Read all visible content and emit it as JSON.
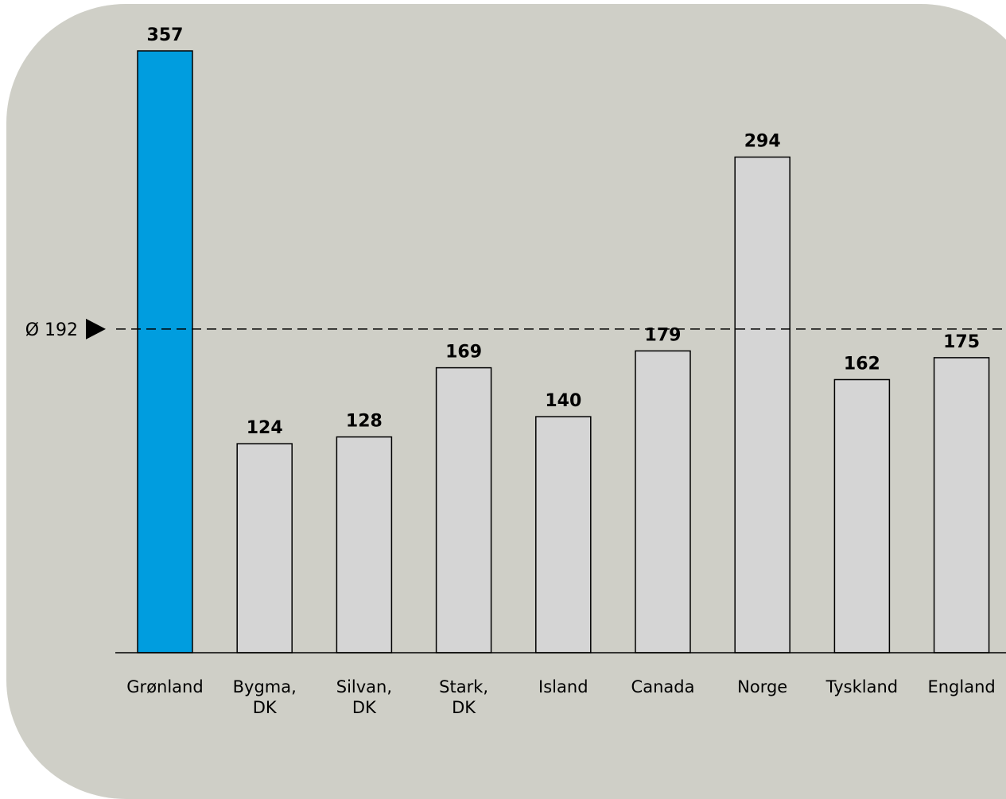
{
  "chart_data": {
    "type": "bar",
    "categories": [
      [
        "Grønland"
      ],
      [
        "Bygma,",
        "DK"
      ],
      [
        "Silvan,",
        "DK"
      ],
      [
        "Stark,",
        "DK"
      ],
      [
        "Island"
      ],
      [
        "Canada"
      ],
      [
        "Norge"
      ],
      [
        "Tyskland"
      ],
      [
        "England"
      ]
    ],
    "values": [
      357,
      124,
      128,
      169,
      140,
      179,
      294,
      162,
      175
    ],
    "value_labels": [
      "357",
      "124",
      "128",
      "169",
      "140",
      "179",
      "294",
      "162",
      "175"
    ],
    "highlight_index": 0,
    "average": 192,
    "average_label": "Ø 192",
    "title": "",
    "xlabel": "",
    "ylabel": "",
    "ylim": [
      0,
      357
    ],
    "grid": false,
    "colors": {
      "highlight": "#009ddf",
      "default": "#d5d5d5",
      "panel": "#cfcfc7",
      "outline": "#000000"
    }
  }
}
